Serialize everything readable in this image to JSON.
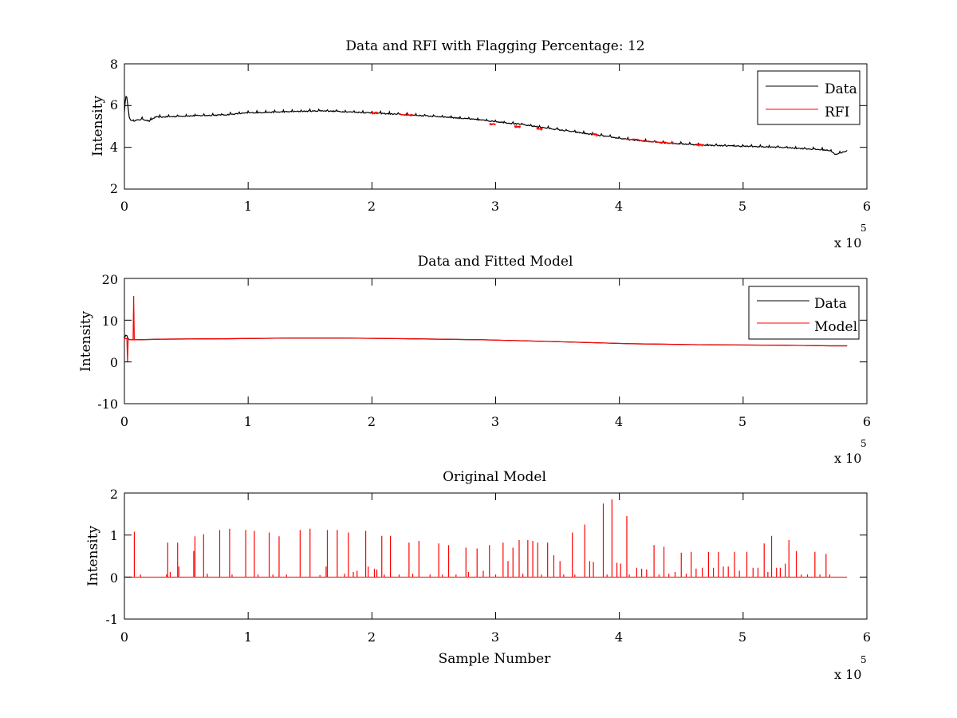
{
  "chart_data": [
    {
      "type": "line",
      "title": "Data and RFI with Flagging Percentage: 12",
      "xlabel": "",
      "ylabel": "Intensity",
      "xlim": [
        0,
        6
      ],
      "ylim": [
        2,
        8
      ],
      "xticks": [
        "0",
        "1",
        "2",
        "3",
        "4",
        "5",
        "6"
      ],
      "yticks": [
        "2",
        "4",
        "6",
        "8"
      ],
      "x_multiplier": {
        "base": "x 10",
        "exponent": "5"
      },
      "legend": {
        "position": "top-right",
        "entries": [
          "Data",
          "RFI"
        ]
      },
      "series": [
        {
          "name": "Data",
          "color": "#000000",
          "x": [
            0,
            0.01,
            0.02,
            0.03,
            0.04,
            0.06,
            0.1,
            0.15,
            0.2,
            0.25,
            0.3,
            0.5,
            0.8,
            1.0,
            1.3,
            1.6,
            1.8,
            2.0,
            2.3,
            2.6,
            2.9,
            3.2,
            3.5,
            3.8,
            4.1,
            4.4,
            4.7,
            5.0,
            5.3,
            5.6,
            5.7,
            5.75,
            5.8,
            5.84
          ],
          "y": [
            5.7,
            6.45,
            6.4,
            5.9,
            5.4,
            5.25,
            5.3,
            5.35,
            5.25,
            5.45,
            5.45,
            5.5,
            5.55,
            5.65,
            5.7,
            5.75,
            5.7,
            5.65,
            5.55,
            5.45,
            5.3,
            5.1,
            4.85,
            4.6,
            4.35,
            4.2,
            4.1,
            4.05,
            4.0,
            3.9,
            3.85,
            3.65,
            3.75,
            3.85
          ],
          "noise": 0.05
        },
        {
          "name": "RFI",
          "color": "#ff0000",
          "segments": [
            {
              "x": [
                2.0,
                2.05
              ],
              "y": [
                5.65,
                5.64
              ]
            },
            {
              "x": [
                2.23,
                2.33
              ],
              "y": [
                5.57,
                5.54
              ]
            },
            {
              "x": [
                2.95,
                3.0
              ],
              "y": [
                5.12,
                5.1
              ]
            },
            {
              "x": [
                3.15,
                3.2
              ],
              "y": [
                5.0,
                4.98
              ]
            },
            {
              "x": [
                3.33,
                3.38
              ],
              "y": [
                4.9,
                4.88
              ]
            },
            {
              "x": [
                3.78,
                3.82
              ],
              "y": [
                4.63,
                4.6
              ]
            },
            {
              "x": [
                4.05,
                4.45
              ],
              "y": [
                4.4,
                4.18
              ]
            },
            {
              "x": [
                4.62,
                4.68
              ],
              "y": [
                4.12,
                4.1
              ]
            }
          ]
        }
      ]
    },
    {
      "type": "line",
      "title": "Data and Fitted Model",
      "xlabel": "",
      "ylabel": "Intensity",
      "xlim": [
        0,
        6
      ],
      "ylim": [
        -10,
        20
      ],
      "xticks": [
        "0",
        "1",
        "2",
        "3",
        "4",
        "5",
        "6"
      ],
      "yticks": [
        "-10",
        "0",
        "10",
        "20"
      ],
      "x_multiplier": {
        "base": "x 10",
        "exponent": "5"
      },
      "legend": {
        "position": "top-right",
        "entries": [
          "Data",
          "Model"
        ]
      },
      "series": [
        {
          "name": "Data",
          "color": "#000000",
          "x": [
            0,
            0.01,
            0.02,
            0.03,
            0.05,
            0.1,
            0.3,
            0.8,
            1.3,
            1.8,
            2.3,
            2.9,
            3.5,
            4.1,
            4.7,
            5.3,
            5.7,
            5.84
          ],
          "y": [
            5.7,
            6.4,
            6.3,
            5.5,
            5.3,
            5.3,
            5.45,
            5.55,
            5.7,
            5.7,
            5.55,
            5.3,
            4.85,
            4.35,
            4.1,
            4.0,
            3.85,
            3.85
          ]
        },
        {
          "name": "Model",
          "color": "#ff0000",
          "x": [
            0,
            0.02,
            0.025,
            0.03,
            0.05,
            0.07,
            0.075,
            0.08,
            0.1,
            0.3,
            0.8,
            1.3,
            1.8,
            2.3,
            2.9,
            3.5,
            4.1,
            4.7,
            5.3,
            5.7,
            5.84
          ],
          "y": [
            5.6,
            5.6,
            0,
            5.4,
            5.3,
            5.3,
            15.8,
            5.3,
            5.3,
            5.45,
            5.55,
            5.7,
            5.7,
            5.55,
            5.3,
            4.85,
            4.35,
            4.1,
            4.0,
            3.85,
            3.85
          ]
        }
      ]
    },
    {
      "type": "line",
      "title": "Original Model",
      "xlabel": "Sample Number",
      "ylabel": "Intensity",
      "xlim": [
        0,
        6
      ],
      "ylim": [
        -1,
        2
      ],
      "xticks": [
        "0",
        "1",
        "2",
        "3",
        "4",
        "5",
        "6"
      ],
      "yticks": [
        "-1",
        "0",
        "1",
        "2"
      ],
      "x_multiplier": {
        "base": "x 10",
        "exponent": "5"
      },
      "series": [
        {
          "name": "Model",
          "color": "#ff0000",
          "baseline": [
            0,
            5.84
          ],
          "spikes": [
            {
              "x": 0.08,
              "y": 1.08
            },
            {
              "x": 0.13,
              "y": 0.06
            },
            {
              "x": 0.34,
              "y": 0.06
            },
            {
              "x": 0.35,
              "y": 0.82
            },
            {
              "x": 0.37,
              "y": 0.12
            },
            {
              "x": 0.43,
              "y": 0.82
            },
            {
              "x": 0.44,
              "y": 0.25
            },
            {
              "x": 0.56,
              "y": 0.62
            },
            {
              "x": 0.57,
              "y": 0.97
            },
            {
              "x": 0.64,
              "y": 1.02
            },
            {
              "x": 0.67,
              "y": 0.08
            },
            {
              "x": 0.77,
              "y": 1.12
            },
            {
              "x": 0.85,
              "y": 1.15
            },
            {
              "x": 0.87,
              "y": 0.06
            },
            {
              "x": 0.98,
              "y": 1.12
            },
            {
              "x": 1.05,
              "y": 1.1
            },
            {
              "x": 1.08,
              "y": 0.06
            },
            {
              "x": 1.17,
              "y": 1.06
            },
            {
              "x": 1.2,
              "y": 0.06
            },
            {
              "x": 1.25,
              "y": 0.97
            },
            {
              "x": 1.31,
              "y": 0.06
            },
            {
              "x": 1.42,
              "y": 1.12
            },
            {
              "x": 1.5,
              "y": 1.15
            },
            {
              "x": 1.58,
              "y": 0.05
            },
            {
              "x": 1.63,
              "y": 0.25
            },
            {
              "x": 1.64,
              "y": 1.12
            },
            {
              "x": 1.72,
              "y": 1.12
            },
            {
              "x": 1.78,
              "y": 0.08
            },
            {
              "x": 1.81,
              "y": 1.06
            },
            {
              "x": 1.85,
              "y": 0.12
            },
            {
              "x": 1.88,
              "y": 0.15
            },
            {
              "x": 1.95,
              "y": 1.1
            },
            {
              "x": 1.97,
              "y": 0.25
            },
            {
              "x": 2.02,
              "y": 0.2
            },
            {
              "x": 2.04,
              "y": 0.18
            },
            {
              "x": 2.08,
              "y": 0.98
            },
            {
              "x": 2.1,
              "y": 0.06
            },
            {
              "x": 2.15,
              "y": 0.98
            },
            {
              "x": 2.22,
              "y": 0.06
            },
            {
              "x": 2.3,
              "y": 0.82
            },
            {
              "x": 2.33,
              "y": 0.08
            },
            {
              "x": 2.38,
              "y": 0.86
            },
            {
              "x": 2.47,
              "y": 0.06
            },
            {
              "x": 2.54,
              "y": 0.8
            },
            {
              "x": 2.57,
              "y": 0.06
            },
            {
              "x": 2.62,
              "y": 0.76
            },
            {
              "x": 2.68,
              "y": 0.06
            },
            {
              "x": 2.76,
              "y": 0.7
            },
            {
              "x": 2.78,
              "y": 0.12
            },
            {
              "x": 2.85,
              "y": 0.68
            },
            {
              "x": 2.9,
              "y": 0.15
            },
            {
              "x": 2.95,
              "y": 0.76
            },
            {
              "x": 3.0,
              "y": 0.06
            },
            {
              "x": 3.06,
              "y": 0.82
            },
            {
              "x": 3.1,
              "y": 0.38
            },
            {
              "x": 3.14,
              "y": 0.7
            },
            {
              "x": 3.19,
              "y": 0.88
            },
            {
              "x": 3.22,
              "y": 0.08
            },
            {
              "x": 3.26,
              "y": 0.88
            },
            {
              "x": 3.3,
              "y": 0.86
            },
            {
              "x": 3.34,
              "y": 0.82
            },
            {
              "x": 3.37,
              "y": 0.06
            },
            {
              "x": 3.42,
              "y": 0.82
            },
            {
              "x": 3.47,
              "y": 0.52
            },
            {
              "x": 3.52,
              "y": 0.38
            },
            {
              "x": 3.55,
              "y": 0.06
            },
            {
              "x": 3.62,
              "y": 1.06
            },
            {
              "x": 3.64,
              "y": 0.06
            },
            {
              "x": 3.72,
              "y": 1.25
            },
            {
              "x": 3.76,
              "y": 0.38
            },
            {
              "x": 3.79,
              "y": 0.36
            },
            {
              "x": 3.87,
              "y": 1.75
            },
            {
              "x": 3.9,
              "y": 0.06
            },
            {
              "x": 3.94,
              "y": 1.85
            },
            {
              "x": 3.98,
              "y": 0.34
            },
            {
              "x": 4.01,
              "y": 0.32
            },
            {
              "x": 4.06,
              "y": 1.45
            },
            {
              "x": 4.08,
              "y": 0.06
            },
            {
              "x": 4.14,
              "y": 0.22
            },
            {
              "x": 4.18,
              "y": 0.2
            },
            {
              "x": 4.22,
              "y": 0.18
            },
            {
              "x": 4.28,
              "y": 0.76
            },
            {
              "x": 4.32,
              "y": 0.06
            },
            {
              "x": 4.36,
              "y": 0.72
            },
            {
              "x": 4.4,
              "y": 0.08
            },
            {
              "x": 4.45,
              "y": 0.12
            },
            {
              "x": 4.5,
              "y": 0.58
            },
            {
              "x": 4.54,
              "y": 0.08
            },
            {
              "x": 4.58,
              "y": 0.6
            },
            {
              "x": 4.62,
              "y": 0.2
            },
            {
              "x": 4.67,
              "y": 0.22
            },
            {
              "x": 4.72,
              "y": 0.6
            },
            {
              "x": 4.76,
              "y": 0.22
            },
            {
              "x": 4.8,
              "y": 0.6
            },
            {
              "x": 4.84,
              "y": 0.25
            },
            {
              "x": 4.88,
              "y": 0.25
            },
            {
              "x": 4.93,
              "y": 0.6
            },
            {
              "x": 4.97,
              "y": 0.15
            },
            {
              "x": 5.03,
              "y": 0.6
            },
            {
              "x": 5.08,
              "y": 0.22
            },
            {
              "x": 5.12,
              "y": 0.22
            },
            {
              "x": 5.17,
              "y": 0.8
            },
            {
              "x": 5.2,
              "y": 0.12
            },
            {
              "x": 5.23,
              "y": 0.98
            },
            {
              "x": 5.27,
              "y": 0.22
            },
            {
              "x": 5.3,
              "y": 0.22
            },
            {
              "x": 5.34,
              "y": 0.32
            },
            {
              "x": 5.37,
              "y": 0.88
            },
            {
              "x": 5.43,
              "y": 0.62
            },
            {
              "x": 5.47,
              "y": 0.06
            },
            {
              "x": 5.52,
              "y": 0.06
            },
            {
              "x": 5.58,
              "y": 0.6
            },
            {
              "x": 5.62,
              "y": 0.06
            },
            {
              "x": 5.67,
              "y": 0.55
            },
            {
              "x": 5.7,
              "y": 0.06
            }
          ]
        }
      ]
    }
  ]
}
